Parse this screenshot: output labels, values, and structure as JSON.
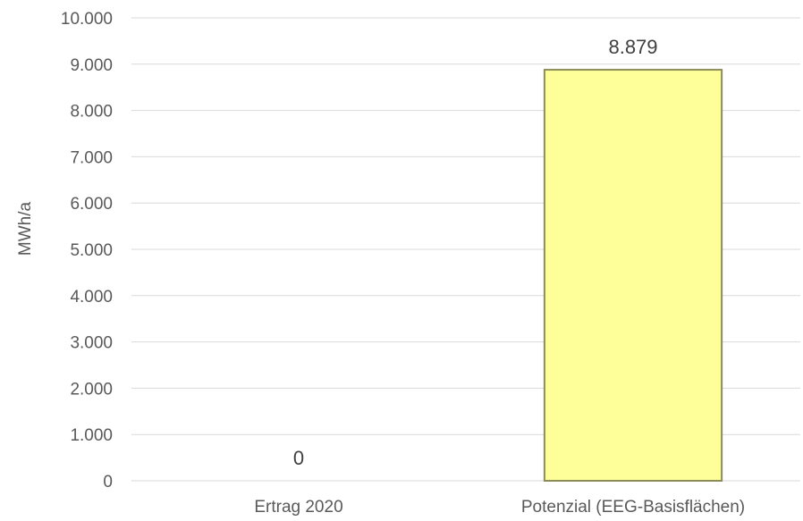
{
  "chart_data": {
    "type": "bar",
    "title": "",
    "xlabel": "",
    "ylabel": "MWh/a",
    "ylim": [
      0,
      10000
    ],
    "yticks": [
      0,
      1000,
      2000,
      3000,
      4000,
      5000,
      6000,
      7000,
      8000,
      9000,
      10000
    ],
    "ytick_labels": [
      "0",
      "1.000",
      "2.000",
      "3.000",
      "4.000",
      "5.000",
      "6.000",
      "7.000",
      "8.000",
      "9.000",
      "10.000"
    ],
    "categories": [
      "Ertrag 2020",
      "Potenzial (EEG-Basisflächen)"
    ],
    "values": [
      0,
      8879
    ],
    "data_labels": [
      "0",
      "8.879"
    ],
    "bar_color": "#ffff99",
    "bar_border_color": "#8c8c5a",
    "grid": true,
    "legend": "none"
  }
}
